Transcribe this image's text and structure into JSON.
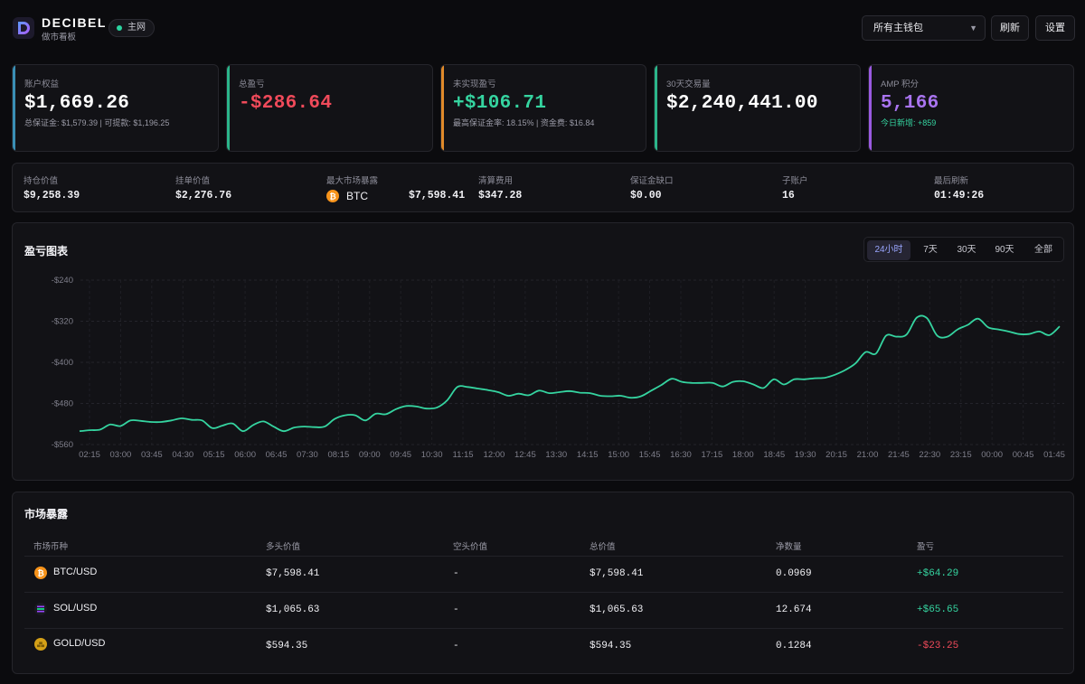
{
  "header": {
    "brand": "DECIBEL",
    "brand_sub": "做市看板",
    "network": "主网",
    "wallet_select": "所有主钱包",
    "refresh_label": "刷新",
    "settings_label": "设置"
  },
  "cards": [
    {
      "label": "账户权益",
      "value": "$1,669.26",
      "sub": "总保证金: $1,579.39 | 可提款: $1,196.25",
      "accent": "#3a8fb5",
      "value_color": "#ffffff"
    },
    {
      "label": "总盈亏",
      "value": "-$286.64",
      "sub": "",
      "accent": "#2bb58a",
      "value_color": "#f04a5a"
    },
    {
      "label": "未实现盈亏",
      "value": "+$106.71",
      "sub": "最高保证金率: 18.15% | 资金费: $16.84",
      "accent": "#e08a2a",
      "value_color": "#35d4a0"
    },
    {
      "label": "30天交易量",
      "value": "$2,240,441.00",
      "sub": "",
      "accent": "#2bb58a",
      "value_color": "#ffffff"
    },
    {
      "label": "AMP 积分",
      "value": "5,166",
      "sub": "今日新增: +859",
      "accent": "#9a5ae0",
      "value_color": "#a974f0",
      "sub_color": "#35d4a0"
    }
  ],
  "stats": [
    {
      "label": "持仓价值",
      "value": "$9,258.39"
    },
    {
      "label": "挂单价值",
      "value": "$2,276.76"
    },
    {
      "label": "最大市场暴露",
      "coin": "BTC",
      "value": "$7,598.41"
    },
    {
      "label": "清算费用",
      "value": "$347.28"
    },
    {
      "label": "保证金缺口",
      "value": "$0.00"
    },
    {
      "label": "子账户",
      "value": "16"
    },
    {
      "label": "最后刷新",
      "value": "01:49:26"
    }
  ],
  "chart_panel": {
    "title": "盈亏图表",
    "ranges": [
      "24小时",
      "7天",
      "30天",
      "90天",
      "全部"
    ],
    "active_range": "24小时"
  },
  "chart_data": {
    "type": "line",
    "title": "盈亏图表",
    "xlabel": "",
    "ylabel": "",
    "ylim": [
      -560,
      -240
    ],
    "y_ticks": [
      -240,
      -320,
      -400,
      -480,
      -560
    ],
    "y_tick_labels": [
      "-$240",
      "-$320",
      "-$400",
      "-$480",
      "-$560"
    ],
    "x_tick_labels": [
      "02:15",
      "03:00",
      "03:45",
      "04:30",
      "05:15",
      "06:00",
      "06:45",
      "07:30",
      "08:15",
      "09:00",
      "09:45",
      "10:30",
      "11:15",
      "12:00",
      "12:45",
      "13:30",
      "14:15",
      "15:00",
      "15:45",
      "16:30",
      "17:15",
      "18:00",
      "18:45",
      "19:30",
      "20:15",
      "21:00",
      "21:45",
      "22:30",
      "23:15",
      "00:00",
      "00:45",
      "01:45"
    ],
    "grid": true,
    "line_color": "#35d4a0",
    "series": [
      {
        "values": [
          -534,
          -532,
          -531,
          -521,
          -524,
          -513,
          -514,
          -516,
          -516,
          -513,
          -509,
          -512,
          -513,
          -528,
          -523,
          -519,
          -534,
          -522,
          -515,
          -525,
          -534,
          -527,
          -525,
          -526,
          -525,
          -510,
          -503,
          -503,
          -513,
          -500,
          -501,
          -491,
          -485,
          -486,
          -490,
          -488,
          -474,
          -448,
          -448,
          -451,
          -454,
          -458,
          -465,
          -461,
          -464,
          -455,
          -460,
          -458,
          -456,
          -459,
          -460,
          -465,
          -466,
          -465,
          -469,
          -466,
          -455,
          -444,
          -432,
          -438,
          -440,
          -440,
          -440,
          -447,
          -438,
          -437,
          -443,
          -450,
          -433,
          -443,
          -433,
          -433,
          -431,
          -430,
          -424,
          -415,
          -402,
          -380,
          -383,
          -348,
          -350,
          -346,
          -313,
          -314,
          -348,
          -350,
          -336,
          -327,
          -315,
          -332,
          -336,
          -340,
          -345,
          -345,
          -340,
          -347,
          -330
        ]
      }
    ]
  },
  "market": {
    "title": "市场暴露",
    "columns": [
      "市场币种",
      "多头价值",
      "空头价值",
      "总价值",
      "净数量",
      "盈亏"
    ],
    "rows": [
      {
        "market": "BTC/USD",
        "icon": "btc-icon",
        "long": "$7,598.41",
        "short": "-",
        "total": "$7,598.41",
        "net": "0.0969",
        "pnl": "+$64.29",
        "pnl_color": "#35d4a0"
      },
      {
        "market": "SOL/USD",
        "icon": "sol-icon",
        "long": "$1,065.63",
        "short": "-",
        "total": "$1,065.63",
        "net": "12.674",
        "pnl": "+$65.65",
        "pnl_color": "#35d4a0"
      },
      {
        "market": "GOLD/USD",
        "icon": "gold-icon",
        "long": "$594.35",
        "short": "-",
        "total": "$594.35",
        "net": "0.1284",
        "pnl": "-$23.25",
        "pnl_color": "#f04a5a"
      }
    ]
  }
}
